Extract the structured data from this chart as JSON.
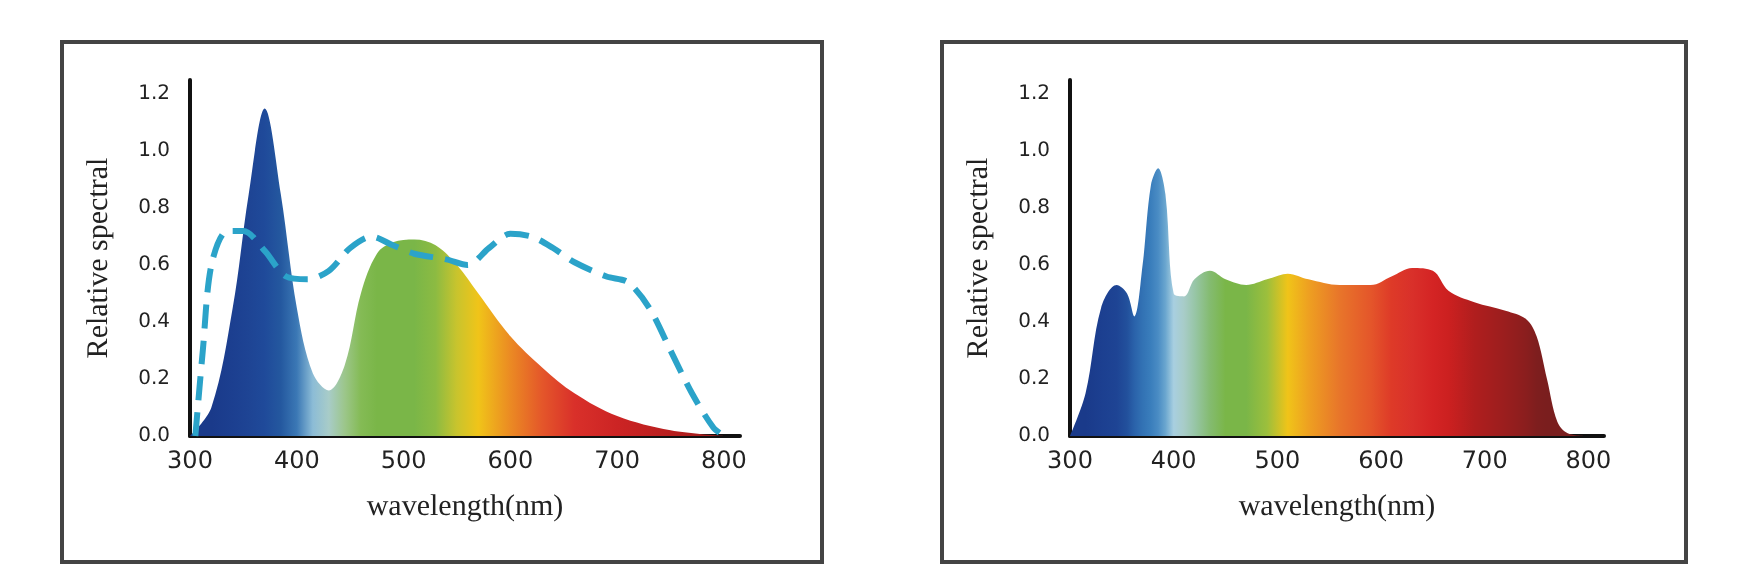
{
  "chart_data": [
    {
      "type": "area",
      "xlabel": "wavelength(nm)",
      "ylabel": "Relative spectral",
      "xlim": [
        300,
        815
      ],
      "ylim": [
        0,
        1.25
      ],
      "xticks": [
        300,
        400,
        500,
        600,
        700,
        800
      ],
      "yticks": [
        {
          "value": 0,
          "label": "0.0"
        },
        {
          "value": 0.2,
          "label": "0.2"
        },
        {
          "value": 0.4,
          "label": "0.4"
        },
        {
          "value": 0.6,
          "label": "0.6"
        },
        {
          "value": 0.8,
          "label": "0.8"
        },
        {
          "value": 1,
          "label": "1.0"
        },
        {
          "value": 1.2,
          "label": "1.2"
        }
      ],
      "grid": false,
      "marker": "none",
      "series": [
        {
          "x": [
            300,
            320,
            340,
            355,
            370,
            385,
            400,
            415,
            430,
            445,
            460,
            475,
            490,
            510,
            530,
            550,
            570,
            600,
            630,
            660,
            700,
            750,
            800
          ],
          "values": [
            0,
            0.1,
            0.45,
            0.85,
            1.15,
            0.85,
            0.45,
            0.22,
            0.16,
            0.25,
            0.5,
            0.64,
            0.68,
            0.69,
            0.67,
            0.6,
            0.5,
            0.35,
            0.24,
            0.15,
            0.07,
            0.02,
            0
          ],
          "colors": [
            "#1a3a8a",
            "#1a3a8a",
            "#1c3f90",
            "#1e4494",
            "#1f4a9a",
            "#24589f",
            "#3b78b5",
            "#8cbcd6",
            "#a8ccc8",
            "#9cc68a",
            "#84bb55",
            "#7ab648",
            "#7ab648",
            "#7ab648",
            "#8cbb42",
            "#c9c42d",
            "#f0c419",
            "#eb8a23",
            "#e4562a",
            "#d9302a",
            "#cc2424",
            "#b81f1f",
            "#9a1c1c"
          ]
        },
        {
          "type": "line",
          "line_style": "dashed",
          "color": "#2ba3c9",
          "x": [
            305,
            312,
            320,
            335,
            350,
            370,
            390,
            410,
            430,
            450,
            470,
            490,
            510,
            540,
            560,
            580,
            600,
            620,
            640,
            660,
            690,
            710,
            730,
            750,
            770,
            790,
            800
          ],
          "values": [
            0,
            0.3,
            0.6,
            0.72,
            0.72,
            0.65,
            0.56,
            0.55,
            0.58,
            0.66,
            0.7,
            0.67,
            0.64,
            0.62,
            0.6,
            0.66,
            0.71,
            0.7,
            0.66,
            0.61,
            0.56,
            0.54,
            0.45,
            0.3,
            0.15,
            0.03,
            0
          ]
        }
      ]
    },
    {
      "type": "area",
      "xlabel": "wavelength(nm)",
      "ylabel": "Relative spectral",
      "xlim": [
        300,
        815
      ],
      "ylim": [
        0,
        1.25
      ],
      "xticks": [
        300,
        400,
        500,
        600,
        700,
        800
      ],
      "yticks": [
        {
          "value": 0,
          "label": "0.0"
        },
        {
          "value": 0.2,
          "label": "0.2"
        },
        {
          "value": 0.4,
          "label": "0.4"
        },
        {
          "value": 0.6,
          "label": "0.6"
        },
        {
          "value": 0.8,
          "label": "0.8"
        },
        {
          "value": 1,
          "label": "1.0"
        },
        {
          "value": 1.2,
          "label": "1.2"
        }
      ],
      "grid": false,
      "marker": "none",
      "series": [
        {
          "x": [
            300,
            315,
            330,
            345,
            355,
            362,
            370,
            378,
            385,
            392,
            400,
            410,
            420,
            435,
            450,
            470,
            490,
            510,
            530,
            560,
            590,
            610,
            630,
            650,
            665,
            690,
            720,
            740,
            750,
            760,
            770,
            780,
            800
          ],
          "values": [
            0,
            0.15,
            0.45,
            0.53,
            0.5,
            0.42,
            0.6,
            0.88,
            0.94,
            0.85,
            0.5,
            0.49,
            0.55,
            0.58,
            0.55,
            0.53,
            0.55,
            0.57,
            0.55,
            0.53,
            0.53,
            0.56,
            0.59,
            0.58,
            0.51,
            0.47,
            0.44,
            0.41,
            0.35,
            0.2,
            0.05,
            0.01,
            0
          ],
          "colors": [
            "#1a3a8a",
            "#1a3a8a",
            "#1c3f90",
            "#1e4494",
            "#22509c",
            "#2a62aa",
            "#3272b4",
            "#3a7ebc",
            "#4a8cc4",
            "#6aa6cf",
            "#a8cfe0",
            "#a8ccc8",
            "#98c6a8",
            "#84bb70",
            "#7ab648",
            "#7ab648",
            "#9cbf3c",
            "#f0c419",
            "#eea021",
            "#e8752a",
            "#e4562a",
            "#de3a28",
            "#d9302a",
            "#d42424",
            "#cc2020",
            "#b01e1e",
            "#9a1e1e",
            "#8a1e1e",
            "#7e1e1e",
            "#7a1e1e",
            "#7a1e1e",
            "#7a1e1e",
            "#7a1e1e"
          ]
        }
      ]
    }
  ]
}
